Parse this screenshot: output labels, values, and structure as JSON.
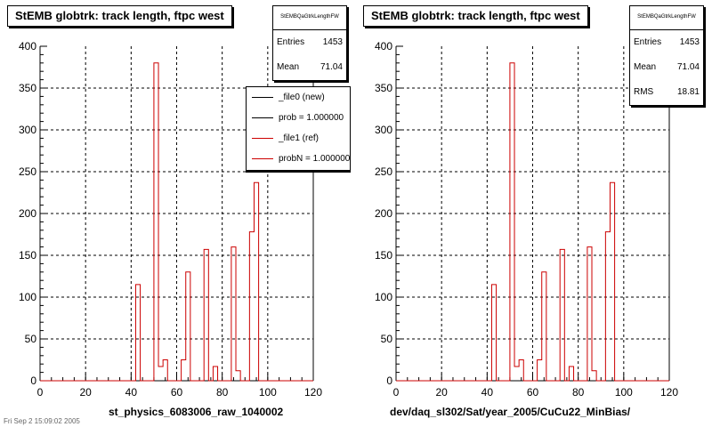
{
  "window": {
    "footer": "Fri Sep 2 15:09:02 2005"
  },
  "panels": [
    {
      "title": "StEMB globtrk: track length, ftpc west",
      "stats": {
        "name": "StEMBQaGtrkLengthFW",
        "rows": [
          {
            "label": "Entries",
            "value": "1453"
          },
          {
            "label": "Mean",
            "value": "71.04"
          }
        ]
      },
      "legend": [
        {
          "label": "_file0 (new)",
          "color": "#000000"
        },
        {
          "label": "prob = 1.000000",
          "color": "#000000"
        },
        {
          "label": "_file1 (ref)",
          "color": "#cc0000"
        },
        {
          "label": "probN = 1.000000",
          "color": "#cc0000"
        }
      ],
      "xtitle": "st_physics_6083006_raw_1040002"
    },
    {
      "title": "StEMB globtrk: track length, ftpc west",
      "stats": {
        "name": "StEMBQaGtrkLengthFW",
        "rows": [
          {
            "label": "Entries",
            "value": "1453"
          },
          {
            "label": "Mean",
            "value": "71.04"
          },
          {
            "label": "RMS",
            "value": "18.81"
          }
        ]
      },
      "xtitle": "dev/daq_sl302/Sat/year_2005/CuCu22_MinBias/"
    }
  ],
  "chart_data": {
    "type": "histogram",
    "xlim": [
      0,
      120
    ],
    "ylim": [
      0,
      400
    ],
    "xticks": [
      "0",
      "20",
      "40",
      "60",
      "80",
      "100",
      "120"
    ],
    "yticks": [
      "0",
      "50",
      "100",
      "150",
      "200",
      "250",
      "300",
      "350",
      "400"
    ],
    "grid": true,
    "bin_width": 2,
    "line_color": "#cc0000",
    "bins": [
      {
        "x": 42,
        "y": 115
      },
      {
        "x": 44,
        "y": 0
      },
      {
        "x": 46,
        "y": 0
      },
      {
        "x": 48,
        "y": 0
      },
      {
        "x": 50,
        "y": 380
      },
      {
        "x": 52,
        "y": 17
      },
      {
        "x": 54,
        "y": 25
      },
      {
        "x": 56,
        "y": 0
      },
      {
        "x": 58,
        "y": 0
      },
      {
        "x": 60,
        "y": 0
      },
      {
        "x": 62,
        "y": 25
      },
      {
        "x": 64,
        "y": 130
      },
      {
        "x": 66,
        "y": 0
      },
      {
        "x": 68,
        "y": 0
      },
      {
        "x": 70,
        "y": 0
      },
      {
        "x": 72,
        "y": 157
      },
      {
        "x": 74,
        "y": 0
      },
      {
        "x": 76,
        "y": 17
      },
      {
        "x": 78,
        "y": 0
      },
      {
        "x": 80,
        "y": 0
      },
      {
        "x": 82,
        "y": 0
      },
      {
        "x": 84,
        "y": 160
      },
      {
        "x": 86,
        "y": 12
      },
      {
        "x": 88,
        "y": 0
      },
      {
        "x": 90,
        "y": 0
      },
      {
        "x": 92,
        "y": 178
      },
      {
        "x": 94,
        "y": 237
      },
      {
        "x": 96,
        "y": 0
      }
    ]
  }
}
